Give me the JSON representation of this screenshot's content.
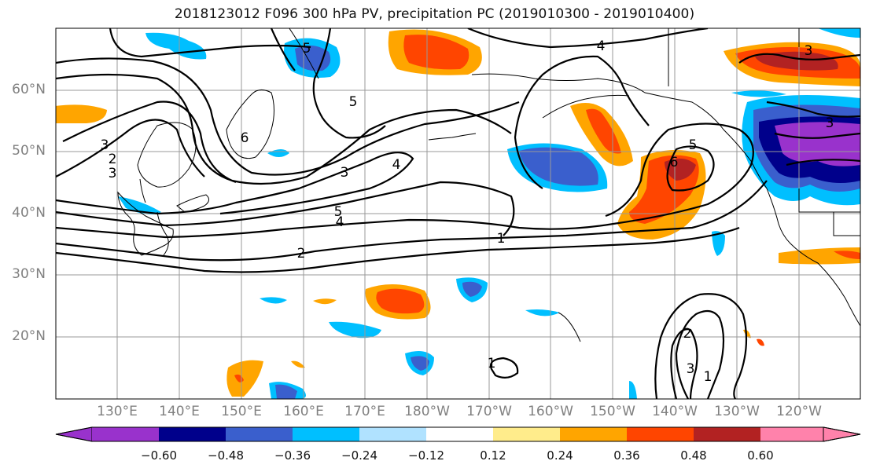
{
  "title": "2018123012 F096 300 hPa PV, precipitation PC (2019010300 - 2019010400)",
  "map": {
    "lat_labels": [
      "60°N",
      "50°N",
      "40°N",
      "30°N",
      "20°N"
    ],
    "lon_labels": [
      "130°E",
      "140°E",
      "150°E",
      "160°E",
      "170°E",
      "180°W",
      "170°W",
      "160°W",
      "150°W",
      "140°W",
      "130°W",
      "120°W"
    ],
    "contour_labels": [
      "4",
      "5",
      "5",
      "6",
      "3",
      "4",
      "5",
      "4",
      "2",
      "1",
      "5",
      "6",
      "3",
      "3",
      "2",
      "3",
      "1",
      "1",
      "2",
      "3",
      "3"
    ],
    "line_color": "#000000"
  },
  "colorbar": {
    "colors": [
      "#9932cc",
      "#00008b",
      "#3a5fcd",
      "#00bfff",
      "#b0e2ff",
      "#ffffff",
      "#ffec8b",
      "#ffa500",
      "#ff4500",
      "#b22222",
      "#ff82ab"
    ],
    "tick_labels": [
      "−0.60",
      "−0.48",
      "−0.36",
      "−0.24",
      "−0.12",
      "0.12",
      "0.24",
      "0.36",
      "0.48",
      "0.60"
    ]
  }
}
